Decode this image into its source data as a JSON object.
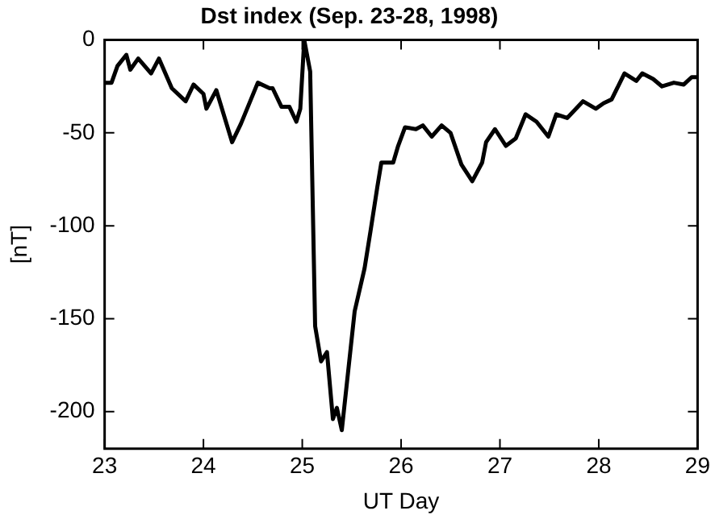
{
  "chart_data": {
    "type": "line",
    "title": "Dst index (Sep. 23-28, 1998)",
    "xlabel": "UT Day",
    "ylabel": "[nT]",
    "series": [
      {
        "color": "#000000",
        "x": [
          23.0,
          23.07,
          23.13,
          23.22,
          23.26,
          23.34,
          23.47,
          23.55,
          23.68,
          23.82,
          23.9,
          24.0,
          24.03,
          24.13,
          24.29,
          24.38,
          24.55,
          24.67,
          24.7,
          24.79,
          24.87,
          24.94,
          24.98,
          25.02,
          25.08,
          25.13,
          25.19,
          25.25,
          25.31,
          25.35,
          25.4,
          25.53,
          25.63,
          25.69,
          25.76,
          25.8,
          25.92,
          25.97,
          26.04,
          26.15,
          26.22,
          26.31,
          26.41,
          26.5,
          26.61,
          26.72,
          26.82,
          26.86,
          26.95,
          27.06,
          27.16,
          27.26,
          27.37,
          27.49,
          27.57,
          27.68,
          27.84,
          27.97,
          28.05,
          28.13,
          28.26,
          28.38,
          28.44,
          28.55,
          28.64,
          28.76,
          28.86,
          28.94,
          29.0
        ],
        "values": [
          -23,
          -23,
          -14,
          -8,
          -16,
          -10,
          -18,
          -10,
          -26,
          -33,
          -24,
          -29,
          -37,
          -27,
          -55,
          -45,
          -23,
          -26,
          -26,
          -36,
          -36,
          -44,
          -37,
          0,
          -17,
          -154,
          -173,
          -168,
          -204,
          -198,
          -210,
          -146,
          -123,
          -103,
          -79,
          -66,
          -66,
          -57,
          -47,
          -48,
          -46,
          -52,
          -46,
          -50,
          -67,
          -76,
          -66,
          -55,
          -48,
          -57,
          -53,
          -40,
          -44,
          -52,
          -40,
          -42,
          -33,
          -37,
          -34,
          -32,
          -18,
          -22,
          -18,
          -21,
          -25,
          -23,
          -24,
          -20,
          -20
        ]
      }
    ],
    "xlim": [
      23,
      29
    ],
    "xticks": [
      23,
      24,
      25,
      26,
      27,
      28,
      29
    ],
    "ylim": [
      -220,
      0
    ],
    "yticks": [
      -200,
      -150,
      -100,
      -50,
      0
    ],
    "grid": false,
    "legend": false,
    "marker": "none",
    "line_style": "solid"
  }
}
